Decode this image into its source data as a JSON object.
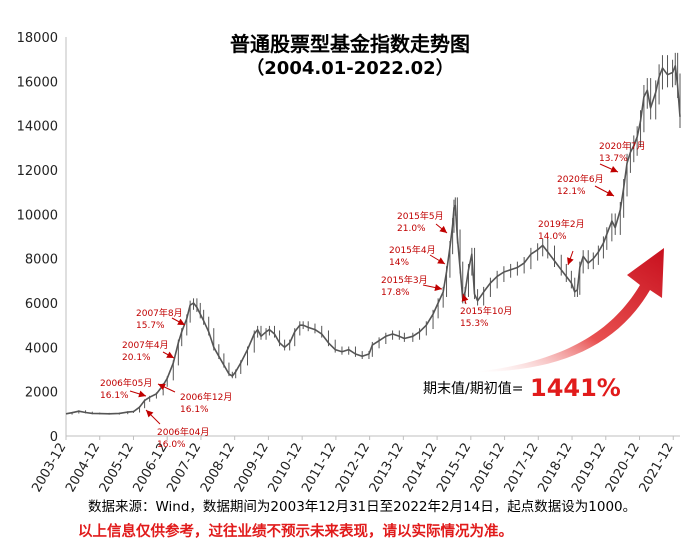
{
  "chart_data": {
    "type": "line",
    "title": "普通股票型基金指数走势图",
    "subtitle": "（2004.01-2022.02）",
    "ylim": [
      0,
      18000
    ],
    "yticks": [
      0,
      2000,
      4000,
      6000,
      8000,
      10000,
      12000,
      14000,
      16000,
      18000
    ],
    "xlim": [
      2003.92,
      2022.12
    ],
    "xticks": [
      "2003-12",
      "2004-12",
      "2005-12",
      "2006-12",
      "2007-12",
      "2008-12",
      "2009-12",
      "2010-12",
      "2011-12",
      "2012-12",
      "2013-12",
      "2014-12",
      "2015-12",
      "2016-12",
      "2017-12",
      "2018-12",
      "2019-12",
      "2020-12",
      "2021-12"
    ],
    "grid": false,
    "series": [
      {
        "color": "#555555",
        "points": [
          [
            2003.92,
            1000
          ],
          [
            2004.1,
            1050
          ],
          [
            2004.3,
            1120
          ],
          [
            2004.5,
            1060
          ],
          [
            2004.7,
            1020
          ],
          [
            2004.92,
            1010
          ],
          [
            2005.2,
            1000
          ],
          [
            2005.5,
            1020
          ],
          [
            2005.75,
            1080
          ],
          [
            2005.92,
            1100
          ],
          [
            2006.1,
            1300
          ],
          [
            2006.25,
            1600
          ],
          [
            2006.4,
            1750
          ],
          [
            2006.6,
            1900
          ],
          [
            2006.8,
            2300
          ],
          [
            2006.92,
            2600
          ],
          [
            2007.1,
            3300
          ],
          [
            2007.25,
            4200
          ],
          [
            2007.35,
            4700
          ],
          [
            2007.5,
            5300
          ],
          [
            2007.6,
            5900
          ],
          [
            2007.7,
            6000
          ],
          [
            2007.8,
            5800
          ],
          [
            2007.9,
            5500
          ],
          [
            2008.0,
            5200
          ],
          [
            2008.15,
            4700
          ],
          [
            2008.3,
            4000
          ],
          [
            2008.45,
            3600
          ],
          [
            2008.6,
            3200
          ],
          [
            2008.75,
            2800
          ],
          [
            2008.85,
            2700
          ],
          [
            2008.95,
            2900
          ],
          [
            2009.1,
            3300
          ],
          [
            2009.3,
            3900
          ],
          [
            2009.5,
            4600
          ],
          [
            2009.6,
            4800
          ],
          [
            2009.7,
            4500
          ],
          [
            2009.85,
            4700
          ],
          [
            2009.95,
            4800
          ],
          [
            2010.1,
            4600
          ],
          [
            2010.25,
            4200
          ],
          [
            2010.4,
            4000
          ],
          [
            2010.55,
            4200
          ],
          [
            2010.7,
            4700
          ],
          [
            2010.85,
            5000
          ],
          [
            2010.95,
            5000
          ],
          [
            2011.1,
            4900
          ],
          [
            2011.3,
            4800
          ],
          [
            2011.5,
            4600
          ],
          [
            2011.7,
            4200
          ],
          [
            2011.9,
            3900
          ],
          [
            2012.1,
            3800
          ],
          [
            2012.3,
            3900
          ],
          [
            2012.5,
            3700
          ],
          [
            2012.7,
            3600
          ],
          [
            2012.9,
            3700
          ],
          [
            2013.0,
            4100
          ],
          [
            2013.2,
            4300
          ],
          [
            2013.4,
            4500
          ],
          [
            2013.6,
            4600
          ],
          [
            2013.8,
            4500
          ],
          [
            2013.95,
            4400
          ],
          [
            2014.2,
            4500
          ],
          [
            2014.4,
            4700
          ],
          [
            2014.6,
            5000
          ],
          [
            2014.8,
            5500
          ],
          [
            2014.95,
            6000
          ],
          [
            2015.1,
            6500
          ],
          [
            2015.2,
            7400
          ],
          [
            2015.3,
            8500
          ],
          [
            2015.38,
            9500
          ],
          [
            2015.42,
            10300
          ],
          [
            2015.46,
            10400
          ],
          [
            2015.52,
            9000
          ],
          [
            2015.6,
            7600
          ],
          [
            2015.68,
            6200
          ],
          [
            2015.75,
            6500
          ],
          [
            2015.85,
            7500
          ],
          [
            2015.95,
            8200
          ],
          [
            2016.03,
            6400
          ],
          [
            2016.12,
            6100
          ],
          [
            2016.3,
            6500
          ],
          [
            2016.5,
            6900
          ],
          [
            2016.7,
            7200
          ],
          [
            2016.9,
            7400
          ],
          [
            2017.1,
            7500
          ],
          [
            2017.3,
            7600
          ],
          [
            2017.5,
            7800
          ],
          [
            2017.7,
            8200
          ],
          [
            2017.9,
            8400
          ],
          [
            2018.05,
            8600
          ],
          [
            2018.2,
            8300
          ],
          [
            2018.4,
            7900
          ],
          [
            2018.6,
            7500
          ],
          [
            2018.75,
            7200
          ],
          [
            2018.9,
            6900
          ],
          [
            2019.0,
            6500
          ],
          [
            2019.08,
            6600
          ],
          [
            2019.15,
            7600
          ],
          [
            2019.25,
            8100
          ],
          [
            2019.4,
            7800
          ],
          [
            2019.55,
            8000
          ],
          [
            2019.7,
            8300
          ],
          [
            2019.85,
            8700
          ],
          [
            2019.95,
            9100
          ],
          [
            2020.1,
            9700
          ],
          [
            2020.2,
            9400
          ],
          [
            2020.35,
            10200
          ],
          [
            2020.45,
            11200
          ],
          [
            2020.55,
            12300
          ],
          [
            2020.65,
            12800
          ],
          [
            2020.75,
            13100
          ],
          [
            2020.85,
            13500
          ],
          [
            2020.95,
            14200
          ],
          [
            2021.05,
            15300
          ],
          [
            2021.15,
            15600
          ],
          [
            2021.25,
            14800
          ],
          [
            2021.4,
            15500
          ],
          [
            2021.5,
            16200
          ],
          [
            2021.6,
            16600
          ],
          [
            2021.75,
            16300
          ],
          [
            2021.9,
            16400
          ],
          [
            2021.98,
            16700
          ],
          [
            2022.05,
            15800
          ],
          [
            2022.12,
            14400
          ]
        ]
      }
    ],
    "annotations": [
      {
        "date": "2006年05月",
        "value": "16.1%"
      },
      {
        "date": "2006年04月",
        "value": "16.0%"
      },
      {
        "date": "2006年12月",
        "value": "16.1%"
      },
      {
        "date": "2007年4月",
        "value": "20.1%"
      },
      {
        "date": "2007年8月",
        "value": "15.7%"
      },
      {
        "date": "2015年3月",
        "value": "17.8%"
      },
      {
        "date": "2015年4月",
        "value": "14%"
      },
      {
        "date": "2015年5月",
        "value": "21.0%"
      },
      {
        "date": "2015年10月",
        "value": "15.3%"
      },
      {
        "date": "2019年2月",
        "value": "14.0%"
      },
      {
        "date": "2020年6月",
        "value": "12.1%"
      },
      {
        "date": "2020年7月",
        "value": "13.7%"
      }
    ],
    "ratio_label": "期末值/期初值=",
    "ratio_value": "1441%",
    "colors": {
      "line": "#555555",
      "annotation": "#c00000",
      "arrow": "#d7191c"
    }
  },
  "notes": {
    "source": "数据来源：Wind，数据期间为2003年12月31日至2022年2月14日，起点数据设为1000。",
    "disclaimer": "以上信息仅供参考，过往业绩不预示未来表现，请以实际情况为准。"
  }
}
